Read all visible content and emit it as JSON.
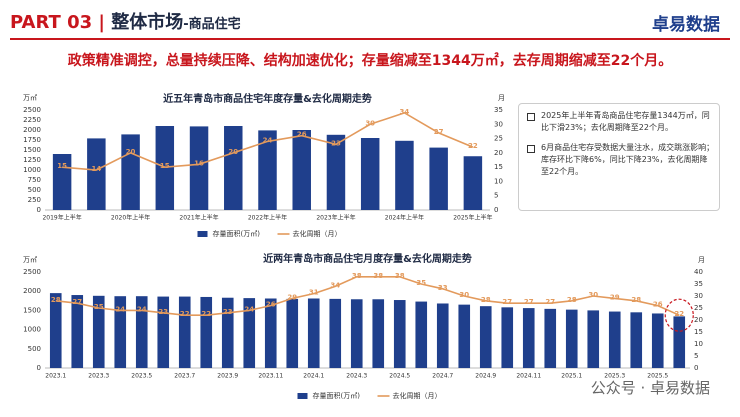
{
  "header": {
    "part": "PART 03",
    "separator": "|",
    "section": "整体市场",
    "subsection": "-商品住宅",
    "logo": "卓易数据"
  },
  "headline": "政策精准调控，总量持续压降、结构加速优化；存量缩减至1344万㎡，去存周期缩减至22个月。",
  "notes": [
    "2025年上半年青岛商品住宅存量1344万㎡，同比下滑23%；去化周期降至22个月。",
    "6月商品住宅存受数据大量注水，成交跳涨影响；库存环比下降6%，同比下降23%，去化周期降至22个月。"
  ],
  "watermark": "公众号 · 卓易数据",
  "chart_data": [
    {
      "type": "combo",
      "title": "近五年青岛市商品住宅年度存量&去化周期走势",
      "categories": [
        "2019年上半年",
        null,
        "2020年上半年",
        null,
        "2021年上半年",
        null,
        "2022年上半年",
        null,
        "2023年上半年",
        null,
        "2024年上半年",
        null,
        "2025年上半年"
      ],
      "ylabel": "万㎡",
      "y2label": "月",
      "ylim": [
        0,
        2500
      ],
      "yticks": [
        0,
        250,
        500,
        750,
        1000,
        1250,
        1500,
        1750,
        2000,
        2250,
        2500
      ],
      "y2lim": [
        0,
        35
      ],
      "y2ticks": [
        0,
        5,
        10,
        15,
        20,
        25,
        30,
        35
      ],
      "series": [
        {
          "name": "存量面积(万㎡)",
          "type": "bar",
          "color": "#1f3f8c",
          "values": [
            1400,
            1790,
            1890,
            2100,
            2090,
            2100,
            1990,
            2000,
            1880,
            1800,
            1730,
            1560,
            1344
          ]
        },
        {
          "name": "去化周期（月）",
          "type": "line",
          "axis": "y2",
          "color": "#e39a5c",
          "values": [
            15,
            14,
            20,
            15,
            16,
            20,
            24,
            26,
            23,
            30,
            34,
            27,
            22
          ]
        }
      ]
    },
    {
      "type": "combo",
      "title": "近两年青岛市商品住宅月度存量&去化周期走势",
      "categories": [
        "2023.1",
        null,
        "2023.3",
        null,
        "2023.5",
        null,
        "2023.7",
        null,
        "2023.9",
        null,
        "2023.11",
        null,
        "2024.1",
        null,
        "2024.3",
        null,
        "2024.5",
        null,
        "2024.7",
        null,
        "2024.9",
        null,
        "2024.11",
        null,
        "2025.1",
        null,
        "2025.3",
        null,
        "2025.5",
        null
      ],
      "ylabel": "万㎡",
      "y2label": "月",
      "ylim": [
        0,
        2500
      ],
      "yticks": [
        0,
        500,
        1000,
        1500,
        2000,
        2500
      ],
      "y2lim": [
        0,
        40
      ],
      "y2ticks": [
        0,
        5,
        10,
        15,
        20,
        25,
        30,
        35,
        40
      ],
      "series": [
        {
          "name": "存量面积(万㎡)",
          "type": "bar",
          "color": "#1f3f8c",
          "values": [
            1950,
            1900,
            1880,
            1870,
            1870,
            1860,
            1860,
            1850,
            1830,
            1820,
            1810,
            1800,
            1810,
            1800,
            1790,
            1790,
            1770,
            1730,
            1680,
            1650,
            1610,
            1580,
            1560,
            1540,
            1520,
            1500,
            1470,
            1450,
            1420,
            1344
          ]
        },
        {
          "name": "去化周期（月）",
          "type": "line",
          "axis": "y2",
          "color": "#e39a5c",
          "values": [
            28,
            27,
            25,
            24,
            24,
            23,
            22,
            22,
            23,
            24,
            26,
            29,
            31,
            34,
            38,
            38,
            38,
            35,
            33,
            30,
            28,
            27,
            27,
            27,
            28,
            30,
            29,
            28,
            26,
            22
          ]
        }
      ]
    }
  ]
}
